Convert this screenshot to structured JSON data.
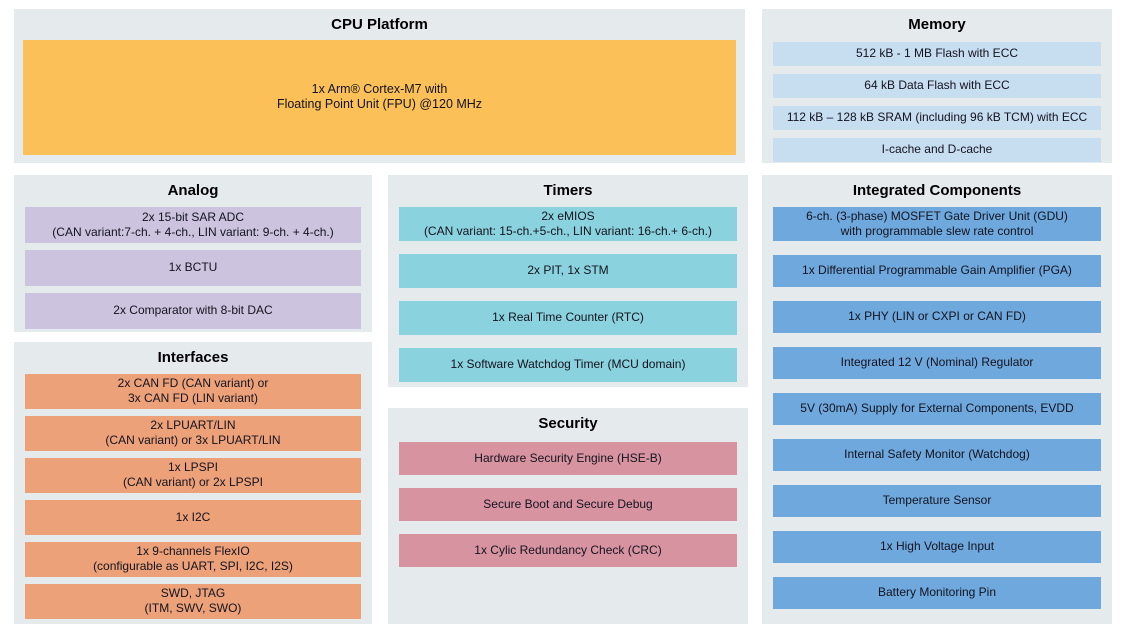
{
  "colors": {
    "panel_bg": "#e5eaed",
    "cpu": "#fbc158",
    "memory": "#c7ddf0",
    "analog": "#ccc4de",
    "timers": "#8ad2dd",
    "integrated": "#6fa8dc",
    "interfaces": "#eca179",
    "security": "#d794a0",
    "row_text": "#13131f",
    "header_text": "#000000"
  },
  "panels": {
    "cpu": {
      "title": "CPU Platform",
      "items": [
        "1x Arm® Cortex-M7 with\nFloating Point Unit (FPU) @120 MHz"
      ]
    },
    "memory": {
      "title": "Memory",
      "items": [
        "512 kB - 1 MB Flash with ECC",
        "64 kB Data Flash with ECC",
        "112 kB – 128 kB SRAM (including 96 kB TCM) with ECC",
        "I-cache and D-cache"
      ]
    },
    "analog": {
      "title": "Analog",
      "items": [
        "2x 15-bit SAR ADC\n(CAN variant:7-ch. + 4-ch., LIN variant: 9-ch. + 4-ch.)",
        "1x BCTU",
        "2x Comparator with 8-bit DAC"
      ]
    },
    "timers": {
      "title": "Timers",
      "items": [
        "2x eMIOS\n(CAN variant: 15-ch.+5-ch., LIN variant: 16-ch.+ 6-ch.)",
        "2x PIT, 1x STM",
        "1x Real Time Counter (RTC)",
        "1x Software Watchdog Timer (MCU domain)"
      ]
    },
    "integrated": {
      "title": "Integrated Components",
      "items": [
        "6-ch. (3-phase) MOSFET Gate Driver Unit (GDU)\nwith programmable slew rate control",
        "1x Differential Programmable Gain Amplifier (PGA)",
        "1x PHY (LIN or CXPI or CAN FD)",
        "Integrated 12 V (Nominal) Regulator",
        "5V (30mA) Supply for External Components, EVDD",
        "Internal Safety Monitor (Watchdog)",
        "Temperature Sensor",
        "1x High Voltage Input",
        "Battery Monitoring Pin"
      ]
    },
    "interfaces": {
      "title": "Interfaces",
      "items": [
        "2x CAN FD (CAN variant) or\n3x CAN FD (LIN variant)",
        "2x LPUART/LIN\n(CAN variant) or 3x LPUART/LIN",
        "1x LPSPI\n(CAN variant) or 2x LPSPI",
        "1x I2C",
        "1x 9-channels FlexIO\n(configurable as UART, SPI, I2C, I2S)",
        "SWD, JTAG\n(ITM, SWV, SWO)"
      ]
    },
    "security": {
      "title": "Security",
      "items": [
        "Hardware Security Engine (HSE-B)",
        "Secure Boot and Secure Debug",
        "1x Cylic Redundancy Check (CRC)"
      ]
    }
  }
}
